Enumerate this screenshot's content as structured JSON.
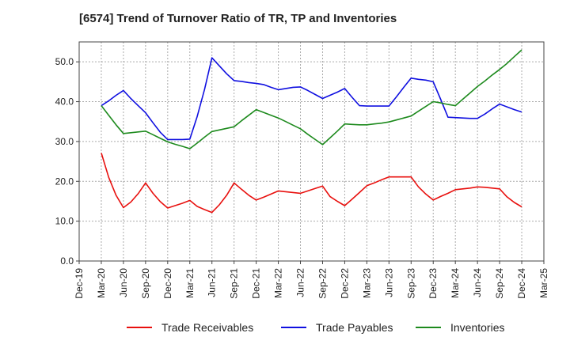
{
  "chart_data": {
    "type": "line",
    "title": "[6574]  Trend of Turnover Ratio of TR, TP and Inventories",
    "xlabel": "",
    "ylabel": "",
    "ylim": [
      0,
      55
    ],
    "yticks": [
      "0.0",
      "10.0",
      "20.0",
      "30.0",
      "40.0",
      "50.0"
    ],
    "x_tick_labels": [
      "Dec-19",
      "Mar-20",
      "Jun-20",
      "Sep-20",
      "Dec-20",
      "Mar-21",
      "Jun-21",
      "Sep-21",
      "Dec-21",
      "Mar-22",
      "Jun-22",
      "Sep-22",
      "Dec-22",
      "Mar-23",
      "Jun-23",
      "Sep-23",
      "Dec-23",
      "Mar-24",
      "Jun-24",
      "Sep-24",
      "Dec-24",
      "Mar-25"
    ],
    "x": [
      "Mar-20",
      "Apr-20",
      "May-20",
      "Jun-20",
      "Jul-20",
      "Aug-20",
      "Sep-20",
      "Oct-20",
      "Nov-20",
      "Dec-20",
      "Jan-21",
      "Feb-21",
      "Mar-21",
      "Apr-21",
      "May-21",
      "Jun-21",
      "Jul-21",
      "Aug-21",
      "Sep-21",
      "Oct-21",
      "Nov-21",
      "Dec-21",
      "Jan-22",
      "Feb-22",
      "Mar-22",
      "Apr-22",
      "May-22",
      "Jun-22",
      "Jul-22",
      "Aug-22",
      "Sep-22",
      "Oct-22",
      "Nov-22",
      "Dec-22",
      "Jan-23",
      "Feb-23",
      "Mar-23",
      "Apr-23",
      "May-23",
      "Jun-23",
      "Jul-23",
      "Aug-23",
      "Sep-23",
      "Oct-23",
      "Nov-23",
      "Dec-23",
      "Jan-24",
      "Feb-24",
      "Mar-24",
      "Apr-24",
      "May-24",
      "Jun-24",
      "Jul-24",
      "Aug-24",
      "Sep-24",
      "Oct-24",
      "Nov-24",
      "Dec-24"
    ],
    "grid": true,
    "legend_position": "bottom",
    "series": [
      {
        "name": "Trade Receivables",
        "color": "#e8100e",
        "values": [
          27.1,
          21.0,
          16.5,
          13.4,
          14.8,
          16.9,
          19.6,
          17.0,
          14.9,
          13.3,
          13.9,
          14.5,
          15.2,
          13.7,
          12.9,
          12.2,
          14.1,
          16.5,
          19.6,
          18.0,
          16.5,
          15.3,
          16.0,
          16.8,
          17.6,
          17.4,
          17.2,
          17.0,
          17.6,
          18.2,
          18.8,
          16.2,
          15.0,
          13.9,
          15.5,
          17.2,
          18.9,
          19.6,
          20.4,
          21.1,
          21.1,
          21.1,
          21.1,
          18.6,
          16.8,
          15.3,
          16.2,
          17.0,
          17.9,
          18.1,
          18.3,
          18.6,
          18.5,
          18.3,
          18.1,
          16.1,
          14.7,
          13.6
        ]
      },
      {
        "name": "Trade Payables",
        "color": "#1010e0",
        "values": [
          39.0,
          40.2,
          41.6,
          42.8,
          40.8,
          39.0,
          37.2,
          34.7,
          32.3,
          30.5,
          30.5,
          30.5,
          30.6,
          36.3,
          43.1,
          51.0,
          49.0,
          47.0,
          45.3,
          45.1,
          44.8,
          44.6,
          44.3,
          43.6,
          43.0,
          43.3,
          43.6,
          43.7,
          42.8,
          41.8,
          40.8,
          41.6,
          42.4,
          43.3,
          41.1,
          39.0,
          38.9,
          38.9,
          38.9,
          38.9,
          41.2,
          43.6,
          45.9,
          45.6,
          45.4,
          45.0,
          40.6,
          36.1,
          36.0,
          35.9,
          35.8,
          35.8,
          36.9,
          38.2,
          39.4,
          38.7,
          38.0,
          37.4
        ]
      },
      {
        "name": "Inventories",
        "color": "#1d8a1d",
        "values": [
          39.0,
          36.6,
          34.2,
          32.0,
          32.2,
          32.4,
          32.6,
          31.7,
          30.8,
          29.9,
          29.3,
          28.8,
          28.2,
          29.6,
          31.1,
          32.5,
          32.9,
          33.3,
          33.7,
          35.2,
          36.6,
          38.0,
          37.3,
          36.6,
          35.9,
          35.0,
          34.1,
          33.2,
          31.8,
          30.5,
          29.2,
          30.9,
          32.6,
          34.4,
          34.3,
          34.2,
          34.2,
          34.4,
          34.6,
          34.9,
          35.4,
          35.9,
          36.4,
          37.6,
          38.8,
          40.0,
          39.7,
          39.3,
          39.0,
          40.6,
          42.2,
          43.8,
          45.2,
          46.7,
          48.1,
          49.6,
          51.3,
          53.0
        ]
      }
    ]
  }
}
